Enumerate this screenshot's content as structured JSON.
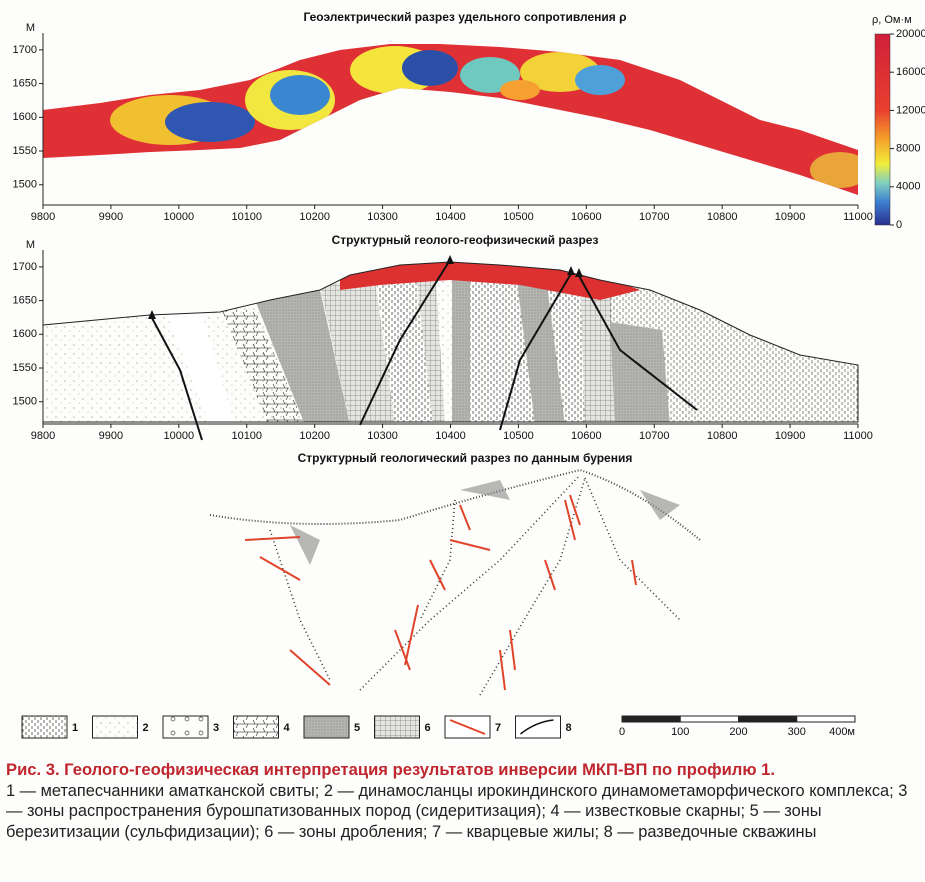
{
  "panels": [
    {
      "title": "Геоэлектрический разрез удельного сопротивления ρ",
      "y_label": "М",
      "xlim": [
        9800,
        11000
      ],
      "ylim": [
        1470,
        1725
      ],
      "xticks": [
        9800,
        9900,
        10000,
        10100,
        10200,
        10300,
        10400,
        10500,
        10600,
        10700,
        10800,
        10900,
        11000
      ],
      "yticks": [
        1500,
        1550,
        1600,
        1650,
        1700
      ],
      "colorbar": {
        "label": "ρ, Ом·м",
        "lim": [
          0,
          20000
        ],
        "ticks": [
          0,
          4000,
          8000,
          12000,
          16000,
          20000
        ]
      }
    },
    {
      "title": "Структурный геолого-геофизический разрез",
      "y_label": "М",
      "xlim": [
        9800,
        11000
      ],
      "ylim": [
        1467,
        1725
      ],
      "xticks": [
        9800,
        9900,
        10000,
        10100,
        10200,
        10300,
        10400,
        10500,
        10600,
        10700,
        10800,
        10900,
        11000
      ],
      "yticks": [
        1500,
        1550,
        1600,
        1650,
        1700
      ]
    },
    {
      "title": "Структурный геологический разрез по данным бурения"
    }
  ],
  "legend": [
    "1",
    "2",
    "3",
    "4",
    "5",
    "6",
    "7",
    "8"
  ],
  "scale_bar": [
    "0",
    "100",
    "200",
    "300",
    "400м"
  ],
  "caption": {
    "title": "Рис. 3. Геолого-геофизическая интерпретация результатов инверсии МКП-ВП по профилю 1.",
    "text": "1 — метапесчанники аматканской свиты; 2 — динамосланцы ирокиндинского динамометаморфического комплекса; 3 — зоны распространения бурошпатизованных пород (сидеритизация); 4 — известковые скарны; 5 — зоны березитизации (сульфидизации); 6 — зоны дробления; 7 — кварцевые жилы; 8 — разведочные скважины"
  }
}
